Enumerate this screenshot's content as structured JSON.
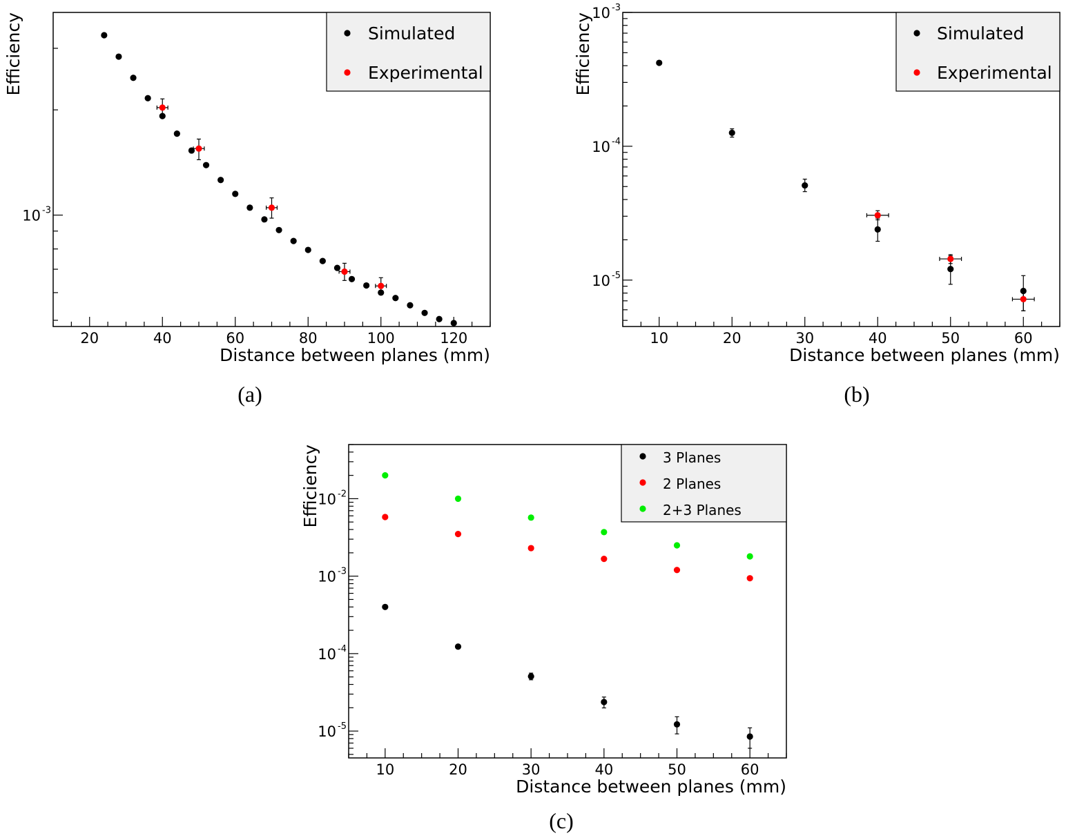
{
  "chart_data": [
    {
      "type": "scatter",
      "panel": "a",
      "caption": "(a)",
      "xlabel": "Distance between planes (mm)",
      "ylabel": "Efficiency",
      "xlim": [
        10,
        130
      ],
      "ylim": [
        0.00048,
        0.0038
      ],
      "yscale": "log",
      "xticks": [
        20,
        40,
        60,
        80,
        100,
        120
      ],
      "ytick_labels": [
        {
          "value": 0.001,
          "base": "10",
          "exp": "-3"
        }
      ],
      "legend_position": "top-right",
      "series": [
        {
          "name": "Simulated",
          "color": "#000000",
          "points": [
            {
              "x": 24,
              "y": 0.00327
            },
            {
              "x": 28,
              "y": 0.00284
            },
            {
              "x": 32,
              "y": 0.00247
            },
            {
              "x": 36,
              "y": 0.00216
            },
            {
              "x": 40,
              "y": 0.00192
            },
            {
              "x": 44,
              "y": 0.00171
            },
            {
              "x": 48,
              "y": 0.00153
            },
            {
              "x": 52,
              "y": 0.00139
            },
            {
              "x": 56,
              "y": 0.00126
            },
            {
              "x": 60,
              "y": 0.00115
            },
            {
              "x": 64,
              "y": 0.00105
            },
            {
              "x": 68,
              "y": 0.000972
            },
            {
              "x": 72,
              "y": 0.000906
            },
            {
              "x": 76,
              "y": 0.000843
            },
            {
              "x": 80,
              "y": 0.000795
            },
            {
              "x": 84,
              "y": 0.000739
            },
            {
              "x": 88,
              "y": 0.000706
            },
            {
              "x": 92,
              "y": 0.000656
            },
            {
              "x": 96,
              "y": 0.000629
            },
            {
              "x": 100,
              "y": 0.0006
            },
            {
              "x": 104,
              "y": 0.000579
            },
            {
              "x": 108,
              "y": 0.000552
            },
            {
              "x": 112,
              "y": 0.000525
            },
            {
              "x": 116,
              "y": 0.000504
            },
            {
              "x": 120,
              "y": 0.000491
            }
          ]
        },
        {
          "name": "Experimental",
          "color": "#ff0000",
          "points": [
            {
              "x": 40,
              "y": 0.00203,
              "ylo": 0.00192,
              "yhi": 0.00215,
              "xerr": 1.5
            },
            {
              "x": 50,
              "y": 0.00155,
              "ylo": 0.00144,
              "yhi": 0.00165,
              "xerr": 1.5
            },
            {
              "x": 70,
              "y": 0.00105,
              "ylo": 0.00098,
              "yhi": 0.00112,
              "xerr": 1.5
            },
            {
              "x": 90,
              "y": 0.000689,
              "ylo": 0.00065,
              "yhi": 0.000728,
              "xerr": 1.5
            },
            {
              "x": 100,
              "y": 0.000627,
              "ylo": 0.000592,
              "yhi": 0.000662,
              "xerr": 1.5
            }
          ]
        }
      ]
    },
    {
      "type": "scatter",
      "panel": "b",
      "caption": "(b)",
      "xlabel": "Distance between planes (mm)",
      "ylabel": "Efficiency",
      "xlim": [
        5,
        65
      ],
      "ylim": [
        4.5e-06,
        0.001
      ],
      "yscale": "log",
      "xticks": [
        10,
        20,
        30,
        40,
        50,
        60
      ],
      "ytick_labels": [
        {
          "value": 1e-05,
          "base": "10",
          "exp": "-5"
        },
        {
          "value": 0.0001,
          "base": "10",
          "exp": "-4"
        },
        {
          "value": 0.001,
          "base": "10",
          "exp": "-3"
        }
      ],
      "legend_position": "top-right",
      "series": [
        {
          "name": "Simulated",
          "color": "#000000",
          "points": [
            {
              "x": 10,
              "y": 0.00042,
              "ylo": 0.00041,
              "yhi": 0.00043
            },
            {
              "x": 20,
              "y": 0.000126,
              "ylo": 0.000117,
              "yhi": 0.000135
            },
            {
              "x": 30,
              "y": 5.1e-05,
              "ylo": 4.58e-05,
              "yhi": 5.68e-05
            },
            {
              "x": 40,
              "y": 2.39e-05,
              "ylo": 1.95e-05,
              "yhi": 2.9e-05
            },
            {
              "x": 50,
              "y": 1.21e-05,
              "ylo": 9.3e-06,
              "yhi": 1.52e-05
            },
            {
              "x": 60,
              "y": 8.3e-06,
              "ylo": 5.9e-06,
              "yhi": 1.08e-05
            }
          ]
        },
        {
          "name": "Experimental",
          "color": "#ff0000",
          "points": [
            {
              "x": 40,
              "y": 3.05e-05,
              "ylo": 2.82e-05,
              "yhi": 3.3e-05,
              "xerr": 1.5
            },
            {
              "x": 50,
              "y": 1.44e-05,
              "ylo": 1.33e-05,
              "yhi": 1.55e-05,
              "xerr": 1.5
            },
            {
              "x": 60,
              "y": 7.2e-06,
              "ylo": 5.9e-06,
              "yhi": 8.5e-06,
              "xerr": 1.5
            }
          ]
        }
      ]
    },
    {
      "type": "scatter",
      "panel": "c",
      "caption": "(c)",
      "xlabel": "Distance between planes (mm)",
      "ylabel": "Efficiency",
      "xlim": [
        5,
        65
      ],
      "ylim": [
        4.5e-06,
        0.05
      ],
      "yscale": "log",
      "xticks": [
        10,
        20,
        30,
        40,
        50,
        60
      ],
      "ytick_labels": [
        {
          "value": 1e-05,
          "base": "10",
          "exp": "-5"
        },
        {
          "value": 0.0001,
          "base": "10",
          "exp": "-4"
        },
        {
          "value": 0.001,
          "base": "10",
          "exp": "-3"
        },
        {
          "value": 0.01,
          "base": "10",
          "exp": "-2"
        }
      ],
      "legend_position": "top-right",
      "series": [
        {
          "name": "3 Planes",
          "color": "#000000",
          "points": [
            {
              "x": 10,
              "y": 0.0004,
              "ylo": 0.00039,
              "yhi": 0.00041
            },
            {
              "x": 20,
              "y": 0.000123,
              "ylo": 0.000116,
              "yhi": 0.00013
            },
            {
              "x": 30,
              "y": 5.08e-05,
              "ylo": 4.59e-05,
              "yhi": 5.6e-05
            },
            {
              "x": 40,
              "y": 2.37e-05,
              "ylo": 1.99e-05,
              "yhi": 2.75e-05
            },
            {
              "x": 50,
              "y": 1.22e-05,
              "ylo": 9.2e-06,
              "yhi": 1.53e-05
            },
            {
              "x": 60,
              "y": 8.5e-06,
              "ylo": 6e-06,
              "yhi": 1.1e-05
            }
          ]
        },
        {
          "name": "2 Planes",
          "color": "#ff0000",
          "points": [
            {
              "x": 10,
              "y": 0.0058
            },
            {
              "x": 20,
              "y": 0.0035
            },
            {
              "x": 30,
              "y": 0.0023
            },
            {
              "x": 40,
              "y": 0.00167
            },
            {
              "x": 50,
              "y": 0.0012
            },
            {
              "x": 60,
              "y": 0.00094
            }
          ]
        },
        {
          "name": "2+3 Planes",
          "color": "#00ee00",
          "points": [
            {
              "x": 10,
              "y": 0.02
            },
            {
              "x": 20,
              "y": 0.01
            },
            {
              "x": 30,
              "y": 0.0057
            },
            {
              "x": 40,
              "y": 0.0037
            },
            {
              "x": 50,
              "y": 0.0025
            },
            {
              "x": 60,
              "y": 0.0018
            }
          ]
        }
      ]
    }
  ]
}
